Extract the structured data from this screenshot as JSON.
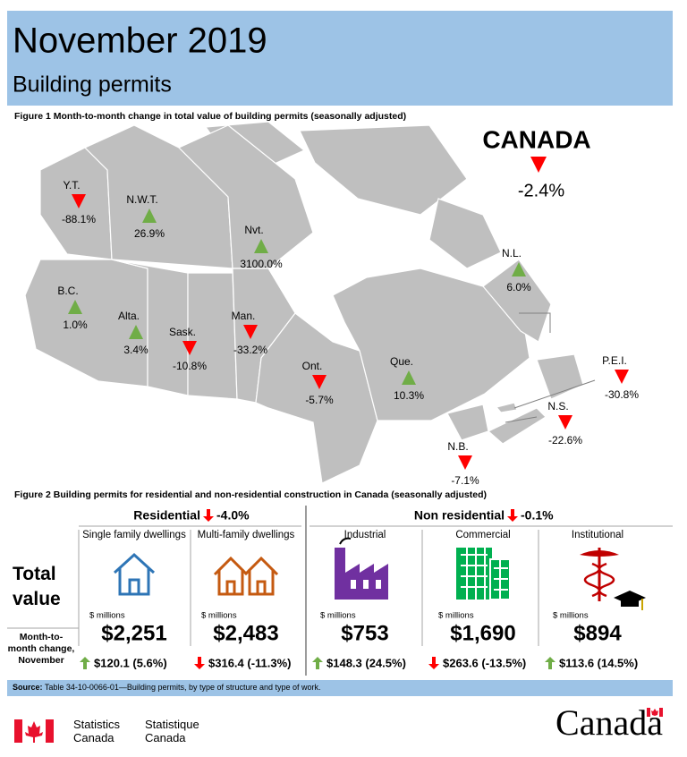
{
  "header": {
    "title": "November 2019",
    "subtitle": "Building permits"
  },
  "figure1": {
    "caption": "Figure 1  Month-to-month change in total value of building permits (seasonally adjusted)",
    "canada": {
      "name": "CANADA",
      "change": "-2.4%",
      "direction": "down"
    },
    "regions": [
      {
        "label": "Y.T.",
        "change": "-88.1%",
        "direction": "down"
      },
      {
        "label": "N.W.T.",
        "change": "26.9%",
        "direction": "up"
      },
      {
        "label": "Nvt.",
        "change": "3100.0%",
        "direction": "up"
      },
      {
        "label": "N.L.",
        "change": "6.0%",
        "direction": "up"
      },
      {
        "label": "B.C.",
        "change": "1.0%",
        "direction": "up"
      },
      {
        "label": "Alta.",
        "change": "3.4%",
        "direction": "up"
      },
      {
        "label": "Sask.",
        "change": "-10.8%",
        "direction": "down"
      },
      {
        "label": "Man.",
        "change": "-33.2%",
        "direction": "down"
      },
      {
        "label": "Ont.",
        "change": "-5.7%",
        "direction": "down"
      },
      {
        "label": "Que.",
        "change": "10.3%",
        "direction": "up"
      },
      {
        "label": "P.E.I.",
        "change": "-30.8%",
        "direction": "down"
      },
      {
        "label": "N.S.",
        "change": "-22.6%",
        "direction": "down"
      },
      {
        "label": "N.B.",
        "change": "-7.1%",
        "direction": "down"
      }
    ]
  },
  "figure2": {
    "caption": "Figure 2  Building permits for residential and non-residential construction in Canada (seasonally adjusted)",
    "row_labels": [
      "Total value",
      "Month-to-month change, November"
    ],
    "groups": [
      {
        "name": "Residential",
        "change": "-4.0%",
        "direction": "down"
      },
      {
        "name": "Non residential",
        "change": "-0.1%",
        "direction": "down"
      }
    ],
    "columns": [
      {
        "name": "Single family dwellings",
        "unit": "$ millions",
        "value": "$2,251",
        "change": "$120.1 (5.6%)",
        "direction": "up"
      },
      {
        "name": "Multi-family dwellings",
        "unit": "$ millions",
        "value": "$2,483",
        "change": "$316.4 (-11.3%)",
        "direction": "down"
      },
      {
        "name": "Industrial",
        "unit": "$ millions",
        "value": "$753",
        "change": "$148.3 (24.5%)",
        "direction": "up"
      },
      {
        "name": "Commercial",
        "unit": "$ millions",
        "value": "$1,690",
        "change": "$263.6 (-13.5%)",
        "direction": "down"
      },
      {
        "name": "Institutional",
        "unit": "$ millions",
        "value": "$894",
        "change": "$113.6 (14.5%)",
        "direction": "up"
      }
    ]
  },
  "source": {
    "label": "Source:",
    "text": "Table 34-10-0066-01—Building permits, by type of structure and type of work."
  },
  "footer": {
    "en": "Statistics Canada",
    "fr": "Statistique Canada",
    "wordmark": "Canada"
  }
}
